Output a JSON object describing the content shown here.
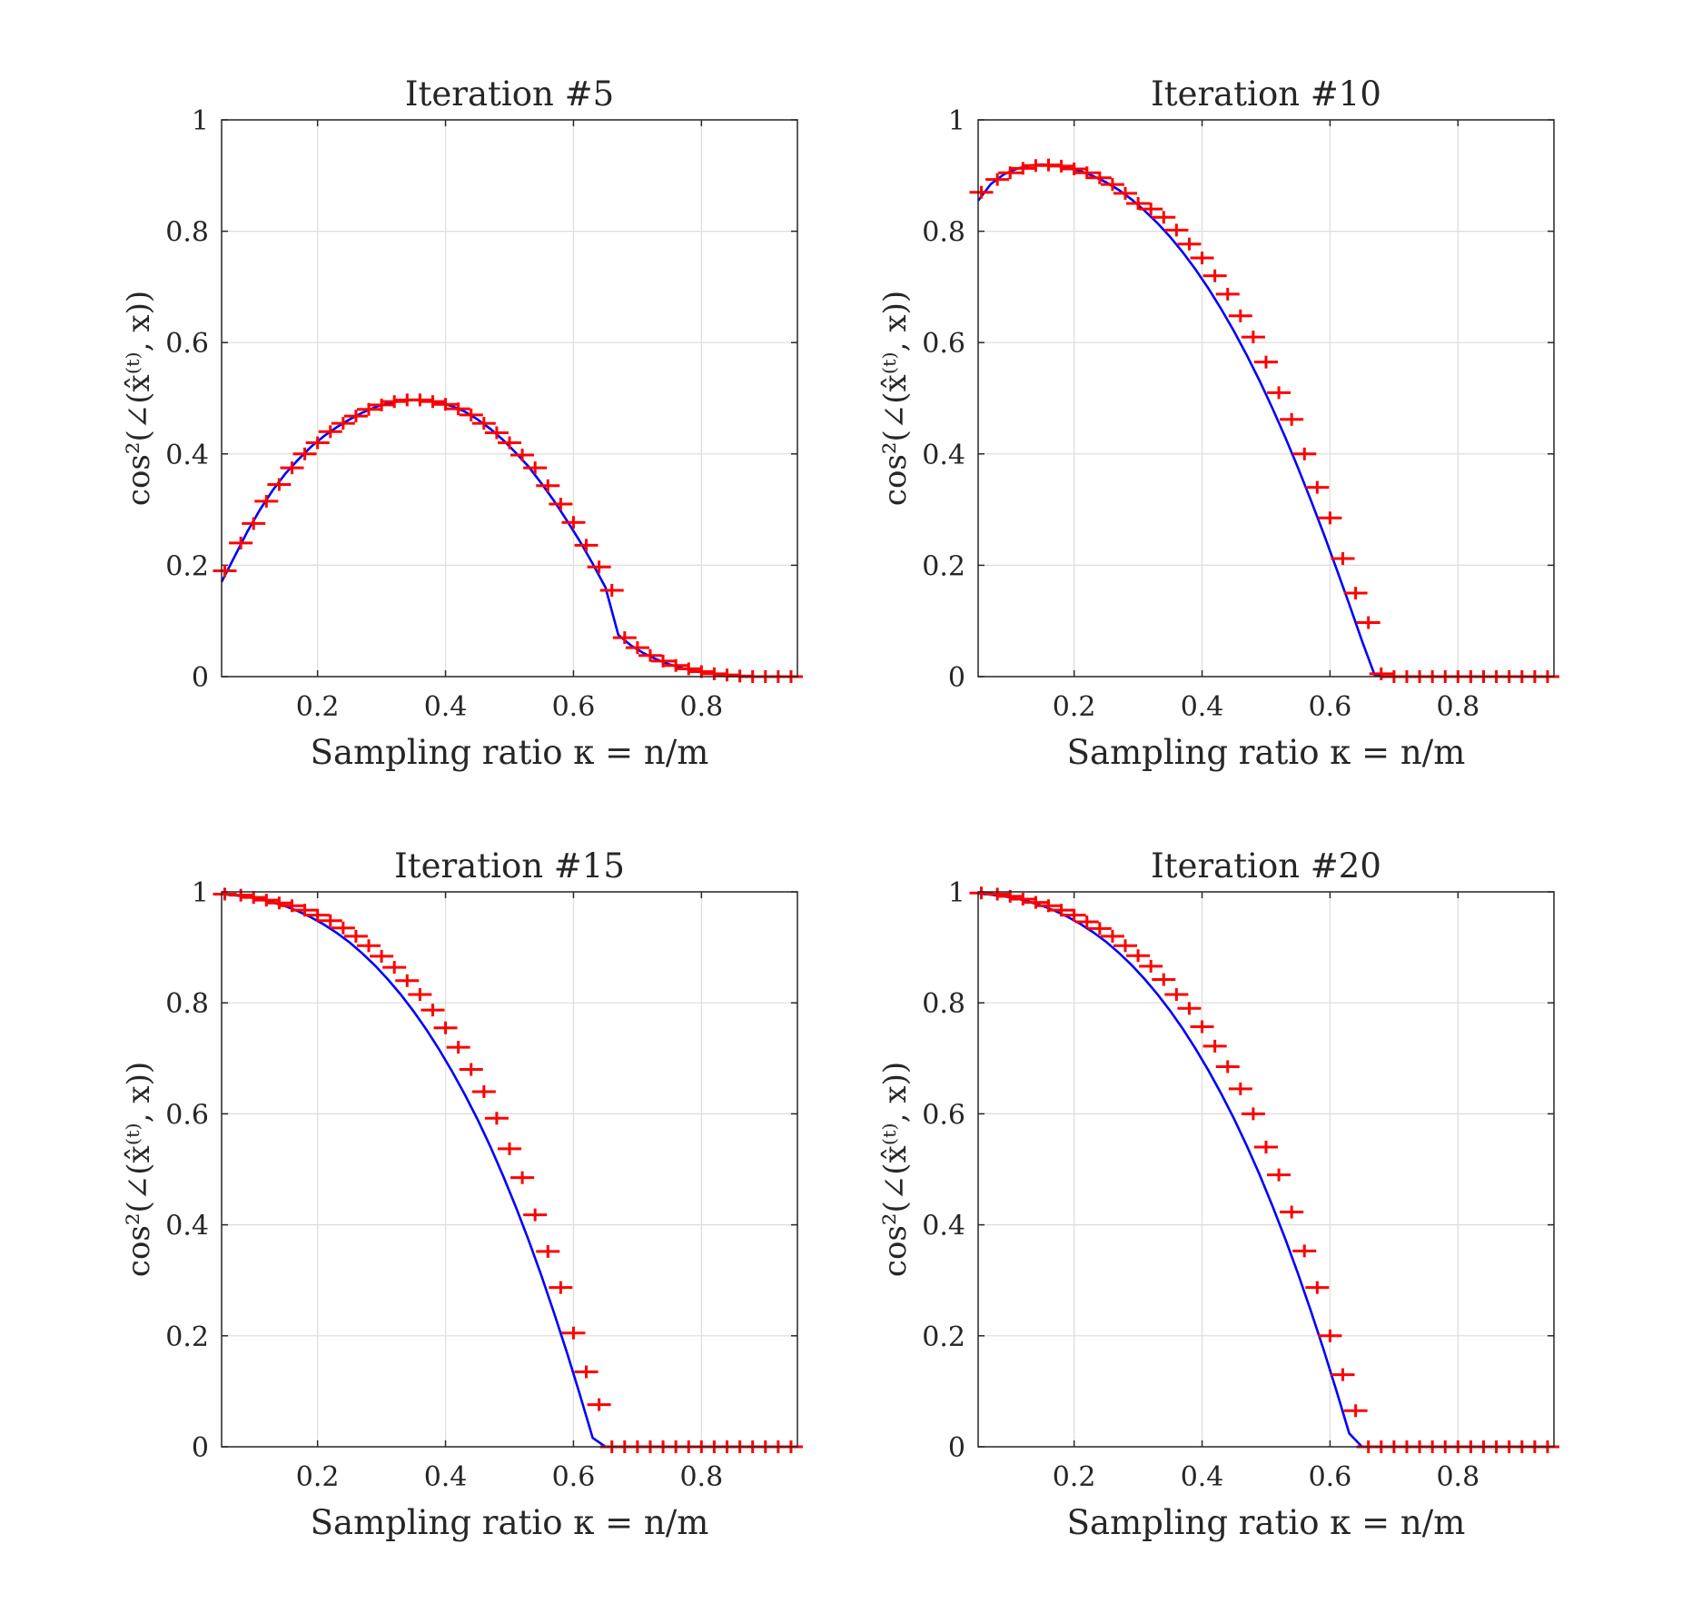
{
  "chart_data": [
    {
      "type": "line",
      "title": "Iteration #5",
      "xlabel": "Sampling ratio κ = n/m",
      "ylabel": "cos²(∠(x̂⁽ᵗ⁾, x))",
      "xlim": [
        0.05,
        0.95
      ],
      "ylim": [
        0,
        1
      ],
      "xticks": [
        "0.2",
        "0.4",
        "0.6",
        "0.8"
      ],
      "yticks": [
        "0",
        "0.2",
        "0.4",
        "0.6",
        "0.8",
        "1"
      ],
      "grid": true,
      "line_color": "#0000ff",
      "marker_color": "#ff0000",
      "marker": "+",
      "x": [
        0.05,
        0.07,
        0.09,
        0.11,
        0.13,
        0.15,
        0.17,
        0.19,
        0.21,
        0.23,
        0.25,
        0.27,
        0.29,
        0.31,
        0.33,
        0.35,
        0.37,
        0.39,
        0.41,
        0.43,
        0.45,
        0.47,
        0.49,
        0.51,
        0.53,
        0.55,
        0.57,
        0.59,
        0.61,
        0.63,
        0.65,
        0.67,
        0.69,
        0.71,
        0.73,
        0.75,
        0.77,
        0.79,
        0.81,
        0.83,
        0.85,
        0.87,
        0.89,
        0.91,
        0.93,
        0.95
      ],
      "line_y": [
        0.17,
        0.215,
        0.26,
        0.3,
        0.335,
        0.365,
        0.39,
        0.413,
        0.432,
        0.448,
        0.462,
        0.474,
        0.484,
        0.491,
        0.495,
        0.497,
        0.496,
        0.492,
        0.486,
        0.476,
        0.462,
        0.445,
        0.425,
        0.402,
        0.377,
        0.347,
        0.315,
        0.28,
        0.243,
        0.203,
        0.16,
        0.075,
        0.056,
        0.042,
        0.031,
        0.022,
        0.015,
        0.01,
        0.006,
        0.003,
        0.002,
        0.001,
        0,
        0,
        0,
        0
      ],
      "marker_x": [
        0.055,
        0.08,
        0.1,
        0.12,
        0.14,
        0.16,
        0.18,
        0.2,
        0.22,
        0.24,
        0.26,
        0.28,
        0.3,
        0.32,
        0.34,
        0.36,
        0.38,
        0.4,
        0.42,
        0.44,
        0.46,
        0.48,
        0.5,
        0.52,
        0.54,
        0.56,
        0.58,
        0.6,
        0.62,
        0.64,
        0.66,
        0.68,
        0.7,
        0.72,
        0.74,
        0.76,
        0.78,
        0.8,
        0.82,
        0.84,
        0.86,
        0.88,
        0.9,
        0.92,
        0.94
      ],
      "marker_y": [
        0.19,
        0.24,
        0.275,
        0.315,
        0.345,
        0.375,
        0.4,
        0.42,
        0.44,
        0.455,
        0.468,
        0.48,
        0.488,
        0.494,
        0.497,
        0.497,
        0.494,
        0.489,
        0.481,
        0.47,
        0.455,
        0.438,
        0.42,
        0.398,
        0.375,
        0.343,
        0.31,
        0.277,
        0.236,
        0.197,
        0.155,
        0.07,
        0.052,
        0.038,
        0.028,
        0.02,
        0.014,
        0.009,
        0.005,
        0.003,
        0.001,
        0,
        0,
        0,
        0
      ]
    },
    {
      "type": "line",
      "title": "Iteration #10",
      "xlabel": "Sampling ratio κ = n/m",
      "ylabel": "cos²(∠(x̂⁽ᵗ⁾, x))",
      "xlim": [
        0.05,
        0.95
      ],
      "ylim": [
        0,
        1
      ],
      "xticks": [
        "0.2",
        "0.4",
        "0.6",
        "0.8"
      ],
      "yticks": [
        "0",
        "0.2",
        "0.4",
        "0.6",
        "0.8",
        "1"
      ],
      "grid": true,
      "line_color": "#0000ff",
      "marker_color": "#ff0000",
      "marker": "+",
      "x": [
        0.05,
        0.07,
        0.09,
        0.11,
        0.13,
        0.15,
        0.17,
        0.19,
        0.21,
        0.23,
        0.25,
        0.27,
        0.29,
        0.31,
        0.33,
        0.35,
        0.37,
        0.39,
        0.41,
        0.43,
        0.45,
        0.47,
        0.49,
        0.51,
        0.53,
        0.55,
        0.57,
        0.59,
        0.61,
        0.63,
        0.65,
        0.67,
        0.69,
        0.71,
        0.73,
        0.75,
        0.77,
        0.79,
        0.81,
        0.83,
        0.85,
        0.87,
        0.89,
        0.91,
        0.93,
        0.95
      ],
      "line_y": [
        0.855,
        0.885,
        0.902,
        0.912,
        0.918,
        0.92,
        0.918,
        0.914,
        0.908,
        0.899,
        0.888,
        0.874,
        0.857,
        0.837,
        0.815,
        0.79,
        0.762,
        0.731,
        0.697,
        0.66,
        0.62,
        0.577,
        0.531,
        0.482,
        0.43,
        0.375,
        0.317,
        0.257,
        0.194,
        0.13,
        0.064,
        0.002,
        0,
        0,
        0,
        0,
        0,
        0,
        0,
        0,
        0,
        0,
        0,
        0,
        0,
        0
      ],
      "marker_x": [
        0.055,
        0.08,
        0.1,
        0.12,
        0.14,
        0.16,
        0.18,
        0.2,
        0.22,
        0.24,
        0.26,
        0.28,
        0.3,
        0.32,
        0.34,
        0.36,
        0.38,
        0.4,
        0.42,
        0.44,
        0.46,
        0.48,
        0.5,
        0.52,
        0.54,
        0.56,
        0.58,
        0.6,
        0.62,
        0.64,
        0.66,
        0.68,
        0.7,
        0.72,
        0.74,
        0.76,
        0.78,
        0.8,
        0.82,
        0.84,
        0.86,
        0.88,
        0.9,
        0.92,
        0.94
      ],
      "marker_y": [
        0.87,
        0.893,
        0.905,
        0.913,
        0.918,
        0.919,
        0.917,
        0.912,
        0.905,
        0.896,
        0.884,
        0.868,
        0.85,
        0.84,
        0.825,
        0.802,
        0.777,
        0.752,
        0.72,
        0.687,
        0.648,
        0.61,
        0.565,
        0.51,
        0.462,
        0.4,
        0.34,
        0.285,
        0.212,
        0.15,
        0.097,
        0.005,
        0,
        0,
        0,
        0,
        0,
        0,
        0,
        0,
        0,
        0,
        0,
        0,
        0
      ]
    },
    {
      "type": "line",
      "title": "Iteration #15",
      "xlabel": "Sampling ratio κ = n/m",
      "ylabel": "cos²(∠(x̂⁽ᵗ⁾, x))",
      "xlim": [
        0.05,
        0.95
      ],
      "ylim": [
        0,
        1
      ],
      "xticks": [
        "0.2",
        "0.4",
        "0.6",
        "0.8"
      ],
      "yticks": [
        "0",
        "0.2",
        "0.4",
        "0.6",
        "0.8",
        "1"
      ],
      "grid": true,
      "line_color": "#0000ff",
      "marker_color": "#ff0000",
      "marker": "+",
      "x": [
        0.05,
        0.07,
        0.09,
        0.11,
        0.13,
        0.15,
        0.17,
        0.19,
        0.21,
        0.23,
        0.25,
        0.27,
        0.29,
        0.31,
        0.33,
        0.35,
        0.37,
        0.39,
        0.41,
        0.43,
        0.45,
        0.47,
        0.49,
        0.51,
        0.53,
        0.55,
        0.57,
        0.59,
        0.61,
        0.63,
        0.65,
        0.67,
        0.69,
        0.71,
        0.73,
        0.75,
        0.77,
        0.79,
        0.81,
        0.83,
        0.85,
        0.87,
        0.89,
        0.91,
        0.93,
        0.95
      ],
      "line_y": [
        0.996,
        0.994,
        0.991,
        0.987,
        0.981,
        0.974,
        0.965,
        0.954,
        0.941,
        0.926,
        0.909,
        0.889,
        0.867,
        0.842,
        0.815,
        0.785,
        0.752,
        0.716,
        0.677,
        0.635,
        0.59,
        0.541,
        0.488,
        0.432,
        0.372,
        0.308,
        0.24,
        0.169,
        0.094,
        0.016,
        0,
        0,
        0,
        0,
        0,
        0,
        0,
        0,
        0,
        0,
        0,
        0,
        0,
        0,
        0,
        0
      ],
      "marker_x": [
        0.055,
        0.08,
        0.1,
        0.12,
        0.14,
        0.16,
        0.18,
        0.2,
        0.22,
        0.24,
        0.26,
        0.28,
        0.3,
        0.32,
        0.34,
        0.36,
        0.38,
        0.4,
        0.42,
        0.44,
        0.46,
        0.48,
        0.5,
        0.52,
        0.54,
        0.56,
        0.58,
        0.6,
        0.62,
        0.64,
        0.66,
        0.68,
        0.7,
        0.72,
        0.74,
        0.76,
        0.78,
        0.8,
        0.82,
        0.84,
        0.86,
        0.88,
        0.9,
        0.92,
        0.94
      ],
      "marker_y": [
        0.996,
        0.994,
        0.99,
        0.985,
        0.98,
        0.975,
        0.967,
        0.958,
        0.948,
        0.935,
        0.92,
        0.903,
        0.884,
        0.864,
        0.84,
        0.815,
        0.787,
        0.755,
        0.72,
        0.68,
        0.64,
        0.592,
        0.537,
        0.485,
        0.418,
        0.352,
        0.287,
        0.205,
        0.135,
        0.076,
        0,
        0,
        0,
        0,
        0,
        0,
        0,
        0,
        0,
        0,
        0,
        0,
        0,
        0,
        0
      ]
    },
    {
      "type": "line",
      "title": "Iteration #20",
      "xlabel": "Sampling ratio κ = n/m",
      "ylabel": "cos²(∠(x̂⁽ᵗ⁾, x))",
      "xlim": [
        0.05,
        0.95
      ],
      "ylim": [
        0,
        1
      ],
      "xticks": [
        "0.2",
        "0.4",
        "0.6",
        "0.8"
      ],
      "yticks": [
        "0",
        "0.2",
        "0.4",
        "0.6",
        "0.8",
        "1"
      ],
      "grid": true,
      "line_color": "#0000ff",
      "marker_color": "#ff0000",
      "marker": "+",
      "x": [
        0.05,
        0.07,
        0.09,
        0.11,
        0.13,
        0.15,
        0.17,
        0.19,
        0.21,
        0.23,
        0.25,
        0.27,
        0.29,
        0.31,
        0.33,
        0.35,
        0.37,
        0.39,
        0.41,
        0.43,
        0.45,
        0.47,
        0.49,
        0.51,
        0.53,
        0.55,
        0.57,
        0.59,
        0.61,
        0.63,
        0.65,
        0.67,
        0.69,
        0.71,
        0.73,
        0.75,
        0.77,
        0.79,
        0.81,
        0.83,
        0.85,
        0.87,
        0.89,
        0.91,
        0.93,
        0.95
      ],
      "line_y": [
        0.997,
        0.995,
        0.992,
        0.988,
        0.982,
        0.975,
        0.966,
        0.955,
        0.942,
        0.927,
        0.91,
        0.89,
        0.868,
        0.843,
        0.816,
        0.786,
        0.753,
        0.717,
        0.678,
        0.636,
        0.591,
        0.542,
        0.49,
        0.434,
        0.375,
        0.312,
        0.245,
        0.175,
        0.101,
        0.024,
        0,
        0,
        0,
        0,
        0,
        0,
        0,
        0,
        0,
        0,
        0,
        0,
        0,
        0,
        0,
        0
      ],
      "marker_x": [
        0.055,
        0.08,
        0.1,
        0.12,
        0.14,
        0.16,
        0.18,
        0.2,
        0.22,
        0.24,
        0.26,
        0.28,
        0.3,
        0.32,
        0.34,
        0.36,
        0.38,
        0.4,
        0.42,
        0.44,
        0.46,
        0.48,
        0.5,
        0.52,
        0.54,
        0.56,
        0.58,
        0.6,
        0.62,
        0.64,
        0.66,
        0.68,
        0.7,
        0.72,
        0.74,
        0.76,
        0.78,
        0.8,
        0.82,
        0.84,
        0.86,
        0.88,
        0.9,
        0.92,
        0.94
      ],
      "marker_y": [
        0.998,
        0.996,
        0.992,
        0.987,
        0.981,
        0.975,
        0.967,
        0.958,
        0.946,
        0.934,
        0.92,
        0.903,
        0.885,
        0.866,
        0.842,
        0.815,
        0.79,
        0.757,
        0.722,
        0.685,
        0.645,
        0.6,
        0.54,
        0.49,
        0.423,
        0.353,
        0.287,
        0.2,
        0.13,
        0.065,
        0,
        0,
        0,
        0,
        0,
        0,
        0,
        0,
        0,
        0,
        0,
        0,
        0,
        0,
        0
      ]
    }
  ]
}
